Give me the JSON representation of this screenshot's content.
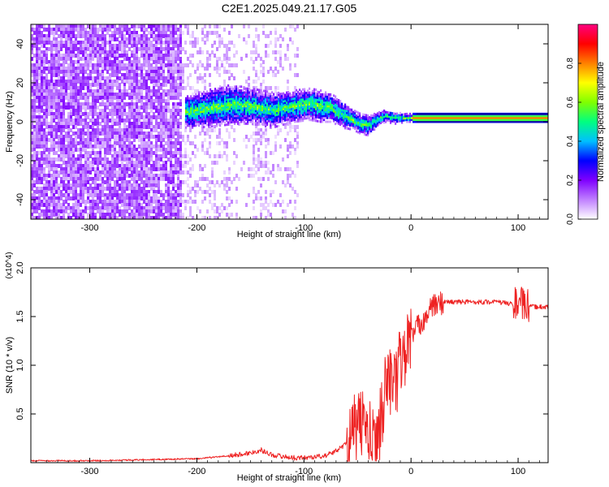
{
  "title": "C2E1.2025.049.21.17.G05",
  "chart_data": [
    {
      "type": "heatmap",
      "xlabel": "Height of straight line (km)",
      "ylabel": "Frequency (Hz)",
      "xlim": [
        -355,
        128
      ],
      "ylim": [
        -50,
        50
      ],
      "xticks": [
        -300,
        -200,
        -100,
        0,
        100
      ],
      "yticks": [
        -40,
        -20,
        0,
        20,
        40
      ],
      "colorbar": {
        "label": "Normalized spectral amplitude",
        "range": [
          0,
          1
        ],
        "ticks": [
          "0.0",
          "0.2",
          "0.4",
          "0.6",
          "0.8"
        ],
        "colors": [
          "#ffffff",
          "#c080ff",
          "#7f00ff",
          "#0000ff",
          "#00c0ff",
          "#00ff80",
          "#80ff00",
          "#ffff00",
          "#ff8000",
          "#ff0000",
          "#ff0080"
        ]
      },
      "band": {
        "x": [
          -212,
          -200,
          -180,
          -165,
          -150,
          -130,
          -110,
          -95,
          -85,
          -75,
          -65,
          -55,
          -48,
          -40,
          -35,
          -25,
          -15,
          -5,
          10,
          40,
          70,
          100,
          128
        ],
        "center_hz": [
          5,
          6,
          8,
          9,
          8,
          6,
          8,
          9,
          8,
          7,
          4,
          1,
          -1,
          -2,
          0,
          3,
          2,
          2,
          2,
          2,
          2,
          2,
          2
        ],
        "halfwidth_hz": [
          8,
          9,
          10,
          10,
          9,
          9,
          8,
          8,
          8,
          7,
          7,
          5,
          5,
          5,
          4,
          3,
          3,
          2,
          2,
          2,
          2,
          2,
          2
        ]
      }
    },
    {
      "type": "line",
      "xlabel": "Height of straight line (km)",
      "ylabel": "SNR (10 * v/v)",
      "ylabel_multiplier": "(x10^4)",
      "xlim": [
        -355,
        128
      ],
      "ylim": [
        0,
        2.0
      ],
      "xticks": [
        -300,
        -200,
        -100,
        0,
        100
      ],
      "yticks": [
        "0.5",
        "1.0",
        "1.5",
        "2.0"
      ],
      "line_color": "#ee2222",
      "series": [
        {
          "x": [
            -355,
            -300,
            -250,
            -200,
            -170,
            -150,
            -140,
            -130,
            -110,
            -100,
            -80,
            -70,
            -60,
            -55,
            -50,
            -45,
            -40,
            -35,
            -30,
            -25,
            -20,
            -15,
            -10,
            -5,
            0,
            10,
            20,
            30,
            40,
            60,
            80,
            95,
            100,
            105,
            110,
            128
          ],
          "values": [
            0.02,
            0.02,
            0.03,
            0.04,
            0.07,
            0.1,
            0.13,
            0.08,
            0.05,
            0.05,
            0.07,
            0.12,
            0.2,
            0.3,
            0.35,
            0.45,
            0.28,
            0.18,
            0.35,
            0.7,
            0.9,
            0.75,
            1.05,
            1.15,
            1.3,
            1.45,
            1.6,
            1.65,
            1.65,
            1.65,
            1.65,
            1.63,
            1.65,
            1.62,
            1.6,
            1.6
          ]
        }
      ]
    }
  ]
}
